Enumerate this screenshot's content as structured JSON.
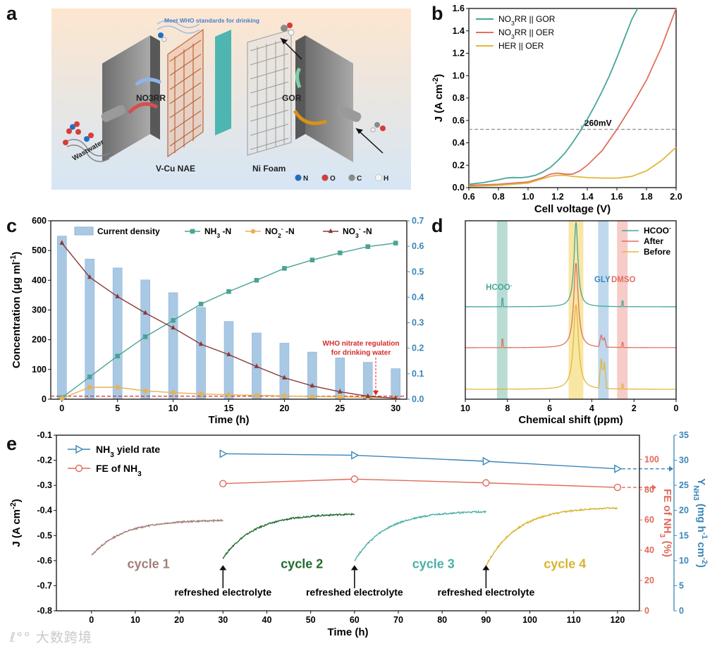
{
  "panels": {
    "a": "a",
    "b": "b",
    "c": "c",
    "d": "d",
    "e": "e"
  },
  "colors": {
    "gor": "#46a69a",
    "oer": "#e07060",
    "her": "#e0b83a",
    "nh3": "#4aa393",
    "no2": "#e8b252",
    "no3": "#8b3a36",
    "bar": "#a9c8e4",
    "fe": "#e06a5a",
    "yield": "#3a86b8",
    "cycle1": "#a27e77",
    "cycle2": "#1f6b2e",
    "cycle3": "#4bb0a6",
    "cycle4": "#d7b530"
  },
  "panel_a": {
    "who_note": "Meet WHO standards for drinking",
    "no3rr": "NO3RR",
    "gor": "GOR",
    "wastwater": "Wastwater",
    "vcu": "V-Cu NAE",
    "nifoam": "Ni Foam",
    "atoms": [
      {
        "sym": "N",
        "color": "#1f6fc7"
      },
      {
        "sym": "O",
        "color": "#d93c36"
      },
      {
        "sym": "C",
        "color": "#8a8a8a"
      },
      {
        "sym": "H",
        "color": "#f4f4f4"
      }
    ]
  },
  "chart_data": [
    {
      "id": "b",
      "type": "line",
      "xlabel": "Cell voltage (V)",
      "ylabel": "J (A cm-2)",
      "xlim": [
        0.6,
        2.0
      ],
      "ylim": [
        0,
        1.6
      ],
      "xticks": [
        "0.6",
        "0.8",
        "1.0",
        "1.2",
        "1.4",
        "1.6",
        "1.8",
        "2.0"
      ],
      "yticks": [
        "0.0",
        "0.2",
        "0.4",
        "0.6",
        "0.8",
        "1.0",
        "1.2",
        "1.4",
        "1.6"
      ],
      "annotation": "260mV",
      "ref_line_y": 0.52,
      "legend_position": "top-left",
      "series": [
        {
          "name": "NO3RR || GOR",
          "color": "#46a69a",
          "x": [
            0.6,
            0.7,
            0.8,
            0.85,
            0.9,
            0.95,
            1.0,
            1.05,
            1.1,
            1.15,
            1.2,
            1.25,
            1.3,
            1.35,
            1.4,
            1.45,
            1.5,
            1.55,
            1.6,
            1.65,
            1.7,
            1.74
          ],
          "y": [
            0.03,
            0.045,
            0.07,
            0.085,
            0.09,
            0.088,
            0.095,
            0.11,
            0.14,
            0.18,
            0.24,
            0.31,
            0.4,
            0.5,
            0.61,
            0.73,
            0.86,
            1.0,
            1.16,
            1.33,
            1.5,
            1.62
          ]
        },
        {
          "name": "NO3RR || OER",
          "color": "#e07060",
          "x": [
            0.6,
            0.8,
            1.0,
            1.1,
            1.15,
            1.2,
            1.25,
            1.3,
            1.35,
            1.4,
            1.5,
            1.6,
            1.7,
            1.8,
            1.9,
            2.0
          ],
          "y": [
            0.02,
            0.03,
            0.05,
            0.09,
            0.12,
            0.13,
            0.12,
            0.12,
            0.15,
            0.2,
            0.33,
            0.52,
            0.73,
            0.96,
            1.25,
            1.6
          ]
        },
        {
          "name": "HER || OER",
          "color": "#e0b83a",
          "x": [
            0.6,
            0.8,
            1.0,
            1.1,
            1.15,
            1.2,
            1.25,
            1.3,
            1.4,
            1.5,
            1.6,
            1.7,
            1.8,
            1.9,
            2.0
          ],
          "y": [
            0.01,
            0.02,
            0.04,
            0.08,
            0.1,
            0.11,
            0.11,
            0.1,
            0.09,
            0.085,
            0.085,
            0.1,
            0.15,
            0.24,
            0.36
          ]
        }
      ]
    },
    {
      "id": "c",
      "type": "bar+line",
      "xlabel": "Time (h)",
      "ylabel": "Concentration (μg ml-1)",
      "y2label": "J (A cm-2)",
      "xlim": [
        -1,
        31
      ],
      "ylim": [
        0,
        600
      ],
      "y2lim": [
        0,
        0.7
      ],
      "xticks": [
        "0",
        "5",
        "10",
        "15",
        "20",
        "25",
        "30"
      ],
      "yticks": [
        "0",
        "100",
        "200",
        "300",
        "400",
        "500",
        "600"
      ],
      "y2ticks": [
        "0.0",
        "0.1",
        "0.2",
        "0.3",
        "0.4",
        "0.5",
        "0.6",
        "0.7"
      ],
      "annotation": "WHO nitrate regulation for drinking water",
      "who_level": 10,
      "bars": {
        "name": "Current density",
        "x": [
          0,
          2.5,
          5,
          7.5,
          10,
          12.5,
          15,
          17.5,
          20,
          22.5,
          25,
          27.5,
          30
        ],
        "values": [
          0.64,
          0.55,
          0.515,
          0.468,
          0.418,
          0.36,
          0.305,
          0.26,
          0.22,
          0.185,
          0.162,
          0.145,
          0.12
        ]
      },
      "series": [
        {
          "name": "NH3 -N",
          "color": "#4aa393",
          "marker": "square",
          "x": [
            0,
            2.5,
            5,
            7.5,
            10,
            12.5,
            15,
            17.5,
            20,
            22.5,
            25,
            27.5,
            30
          ],
          "y": [
            5,
            75,
            145,
            210,
            265,
            320,
            362,
            400,
            440,
            468,
            492,
            513,
            525
          ]
        },
        {
          "name": "NO2- -N",
          "color": "#e8b252",
          "marker": "circle",
          "x": [
            0,
            2.5,
            5,
            7.5,
            10,
            12.5,
            15,
            17.5,
            20,
            22.5,
            25,
            27.5,
            30
          ],
          "y": [
            3,
            40,
            40,
            28,
            22,
            18,
            15,
            13,
            11,
            9,
            8,
            6,
            5
          ]
        },
        {
          "name": "NO3- -N",
          "color": "#8b3a36",
          "marker": "triangle",
          "x": [
            0,
            2.5,
            5,
            7.5,
            10,
            12.5,
            15,
            17.5,
            20,
            22.5,
            25,
            27.5,
            30
          ],
          "y": [
            525,
            410,
            345,
            290,
            240,
            185,
            150,
            110,
            72,
            45,
            25,
            10,
            3
          ]
        }
      ]
    },
    {
      "id": "d",
      "type": "nmr",
      "xlabel": "Chemical shift (ppm)",
      "xlim": [
        10,
        0
      ],
      "xticks": [
        "10",
        "8",
        "6",
        "4",
        "2",
        "0"
      ],
      "peak_labels": [
        {
          "text": "HCOO-",
          "ppm": 8.2,
          "color": "#46a69a"
        },
        {
          "text": "GLY",
          "ppm": 3.5,
          "color": "#3a86b8"
        },
        {
          "text": "DMSO",
          "ppm": 2.5,
          "color": "#e07060"
        }
      ],
      "bands": [
        {
          "from": 8.5,
          "to": 8.0,
          "color": "#7fbfb0"
        },
        {
          "from": 5.1,
          "to": 4.4,
          "color": "#f2d15a"
        },
        {
          "from": 3.7,
          "to": 3.2,
          "color": "#8ab8e0"
        },
        {
          "from": 2.8,
          "to": 2.3,
          "color": "#f0a09a"
        }
      ],
      "series": [
        {
          "name": "HCOO-",
          "color": "#46a69a"
        },
        {
          "name": "After",
          "color": "#e07060"
        },
        {
          "name": "Before",
          "color": "#e0b83a"
        }
      ]
    },
    {
      "id": "e",
      "type": "line",
      "xlabel": "Time (h)",
      "ylabel": "J (A cm-2)",
      "y2label": "FE of NH3 (%)",
      "y3label": "YNH3 (mg h-1 cm-2)",
      "xlim": [
        -8,
        125
      ],
      "ylim": [
        -0.8,
        -0.1
      ],
      "y2lim": [
        0,
        116
      ],
      "y3lim": [
        0,
        35
      ],
      "xticks": [
        "0",
        "10",
        "20",
        "30",
        "40",
        "50",
        "60",
        "70",
        "80",
        "90",
        "100",
        "110",
        "120"
      ],
      "yticks": [
        "-0.8",
        "-0.7",
        "-0.6",
        "-0.5",
        "-0.4",
        "-0.3",
        "-0.2",
        "-0.1"
      ],
      "y2ticks": [
        "0",
        "20",
        "40",
        "60",
        "80",
        "100"
      ],
      "y3ticks": [
        "0",
        "5",
        "10",
        "15",
        "20",
        "25",
        "30",
        "35"
      ],
      "cycles": [
        {
          "label": "cycle 1",
          "color": "#a27e77",
          "x0": 0,
          "x1": 30,
          "start": -0.58,
          "end": -0.44
        },
        {
          "label": "cycle 2",
          "color": "#1f6b2e",
          "x0": 30,
          "x1": 60,
          "start": -0.59,
          "end": -0.415
        },
        {
          "label": "cycle 3",
          "color": "#4bb0a6",
          "x0": 60,
          "x1": 90,
          "start": -0.6,
          "end": -0.405
        },
        {
          "label": "cycle 4",
          "color": "#d7b530",
          "x0": 90,
          "x1": 120,
          "start": -0.62,
          "end": -0.39
        }
      ],
      "events": [
        {
          "x": 30,
          "label": "refreshed electrolyte"
        },
        {
          "x": 60,
          "label": "refreshed electrolyte"
        },
        {
          "x": 90,
          "label": "refreshed electrolyte"
        }
      ],
      "series": [
        {
          "name": "NH3 yield rate",
          "color": "#3a86b8",
          "marker": "triangle",
          "x": [
            30,
            60,
            90,
            120
          ],
          "y": [
            31.3,
            31.0,
            29.8,
            28.3
          ]
        },
        {
          "name": "FE of NH3",
          "color": "#e06a5a",
          "marker": "circle",
          "x": [
            30,
            60,
            90,
            120
          ],
          "y": [
            84,
            87,
            84.5,
            81.5
          ]
        }
      ]
    }
  ],
  "watermark": "大数跨境"
}
